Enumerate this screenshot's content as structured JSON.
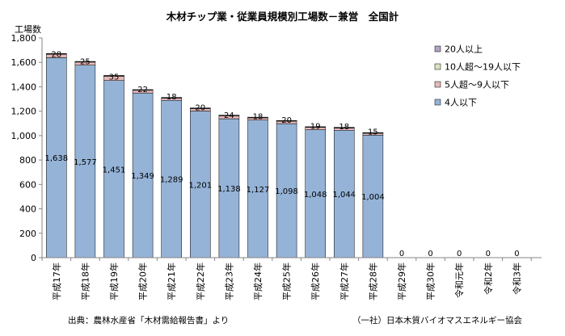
{
  "chart_data": {
    "type": "bar",
    "stacked": true,
    "title": "木材チップ業・従業員規模別工場数－兼営　全国計",
    "ylabel": "工場数",
    "ylim": [
      0,
      1800
    ],
    "yticks": [
      0,
      200,
      400,
      600,
      800,
      1000,
      1200,
      1400,
      1600,
      1800
    ],
    "ytick_labels": [
      "0",
      "200",
      "400",
      "600",
      "800",
      "1,000",
      "1,200",
      "1,400",
      "1,600",
      "1,800"
    ],
    "categories": [
      "平成17年",
      "平成18年",
      "平成19年",
      "平成20年",
      "平成21年",
      "平成22年",
      "平成23年",
      "平成24年",
      "平成25年",
      "平成26年",
      "平成27年",
      "平成28年",
      "平成29年",
      "平成30年",
      "令和元年",
      "令和2年",
      "令和3年"
    ],
    "series": [
      {
        "name": "4人以下",
        "color": "#95b3d7",
        "values": [
          1638,
          1577,
          1451,
          1349,
          1289,
          1201,
          1138,
          1127,
          1098,
          1048,
          1044,
          1004,
          0,
          0,
          0,
          0,
          0
        ],
        "labels": [
          "1,638",
          "1,577",
          "1,451",
          "1,349",
          "1,289",
          "1,201",
          "1,138",
          "1,127",
          "1,098",
          "1,048",
          "1,044",
          "1,004",
          "",
          "",
          "",
          "",
          ""
        ]
      },
      {
        "name": "5人超～9人以下",
        "color": "#e6b9b8",
        "values": [
          28,
          25,
          35,
          22,
          18,
          20,
          24,
          18,
          20,
          19,
          18,
          15,
          0,
          0,
          0,
          0,
          0
        ],
        "labels": [
          "28",
          "25",
          "35",
          "22",
          "18",
          "20",
          "24",
          "18",
          "20",
          "19",
          "18",
          "15",
          "",
          "",
          "",
          "",
          ""
        ]
      },
      {
        "name": "10人超～19人以下",
        "color": "#d7e4bd",
        "values": [
          5,
          4,
          5,
          4,
          4,
          4,
          4,
          4,
          4,
          4,
          4,
          4,
          0,
          0,
          0,
          0,
          0
        ]
      },
      {
        "name": "20人以上",
        "color": "#b3a2c7",
        "values": [
          2,
          2,
          2,
          2,
          2,
          2,
          2,
          2,
          2,
          2,
          2,
          2,
          0,
          0,
          0,
          0,
          0
        ]
      }
    ],
    "totals_labels": [
      "",
      "",
      "",
      "",
      "",
      "",
      "",
      "",
      "",
      "",
      "",
      "",
      "0",
      "0",
      "0",
      "0",
      "0"
    ],
    "grid": false,
    "legend": "right"
  },
  "footer": {
    "source": "出典：農林水産省「木材需給報告書」より",
    "credit": "（一社）日本木質バイオマスエネルギー協会"
  }
}
